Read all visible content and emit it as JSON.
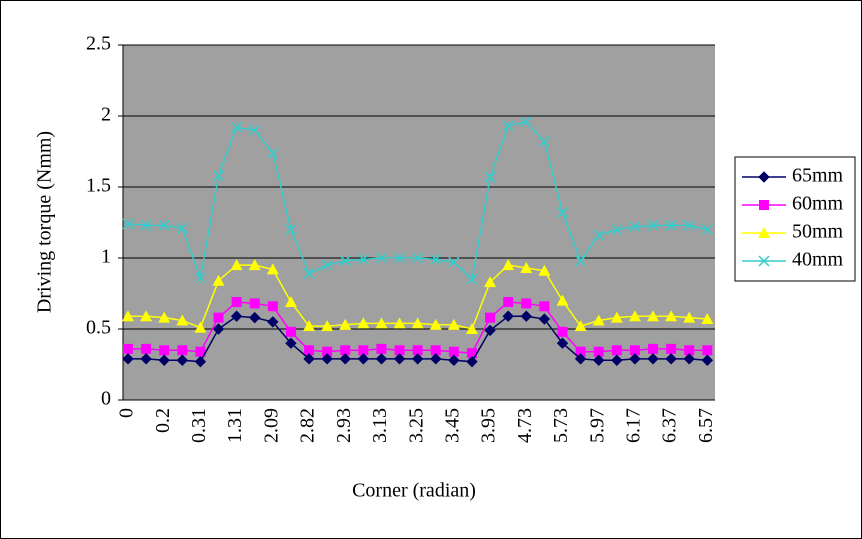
{
  "chart_data": {
    "type": "line",
    "y_label": "Driving torque (Nmm)",
    "x_label": "Corner (radian)",
    "categories": [
      "0",
      null,
      "0.2",
      null,
      "0.31",
      null,
      "1.31",
      null,
      "2.09",
      null,
      "2.82",
      null,
      "2.93",
      null,
      "3.13",
      null,
      "3.25",
      null,
      "3.45",
      null,
      "3.95",
      null,
      "4.73",
      null,
      "5.73",
      null,
      "5.97",
      null,
      "6.17",
      null,
      "6.37",
      null,
      "6.57"
    ],
    "ylim": [
      0,
      2.5
    ],
    "yticks": [
      0,
      0.5,
      1,
      1.5,
      2,
      2.5
    ],
    "grid": true,
    "legend": "right",
    "series": [
      {
        "name": "65mm",
        "color": "#000066",
        "marker": "diamond",
        "values": [
          0.29,
          0.29,
          0.28,
          0.28,
          0.27,
          0.5,
          0.59,
          0.58,
          0.55,
          0.4,
          0.29,
          0.29,
          0.29,
          0.29,
          0.29,
          0.29,
          0.29,
          0.29,
          0.28,
          0.27,
          0.49,
          0.59,
          0.59,
          0.57,
          0.4,
          0.29,
          0.28,
          0.28,
          0.29,
          0.29,
          0.29,
          0.29,
          0.28
        ]
      },
      {
        "name": "60mm",
        "color": "#ff00ff",
        "marker": "square",
        "values": [
          0.36,
          0.36,
          0.35,
          0.35,
          0.34,
          0.58,
          0.69,
          0.68,
          0.66,
          0.48,
          0.35,
          0.34,
          0.35,
          0.35,
          0.36,
          0.35,
          0.35,
          0.35,
          0.34,
          0.33,
          0.58,
          0.69,
          0.68,
          0.66,
          0.48,
          0.34,
          0.34,
          0.35,
          0.35,
          0.36,
          0.36,
          0.35,
          0.35
        ]
      },
      {
        "name": "50mm",
        "color": "#ffff00",
        "marker": "triangle",
        "values": [
          0.59,
          0.59,
          0.58,
          0.56,
          0.51,
          0.84,
          0.95,
          0.95,
          0.92,
          0.69,
          0.52,
          0.52,
          0.53,
          0.54,
          0.54,
          0.54,
          0.54,
          0.53,
          0.53,
          0.5,
          0.83,
          0.95,
          0.93,
          0.91,
          0.7,
          0.52,
          0.56,
          0.58,
          0.59,
          0.59,
          0.59,
          0.58,
          0.57
        ]
      },
      {
        "name": "40mm",
        "color": "#33cccc",
        "marker": "x",
        "values": [
          1.24,
          1.23,
          1.23,
          1.21,
          0.86,
          1.58,
          1.92,
          1.9,
          1.74,
          1.2,
          0.89,
          0.95,
          0.98,
          0.99,
          1.0,
          1.0,
          1.0,
          0.99,
          0.97,
          0.85,
          1.57,
          1.93,
          1.96,
          1.82,
          1.32,
          0.98,
          1.16,
          1.2,
          1.22,
          1.23,
          1.23,
          1.23,
          1.2
        ]
      }
    ]
  }
}
